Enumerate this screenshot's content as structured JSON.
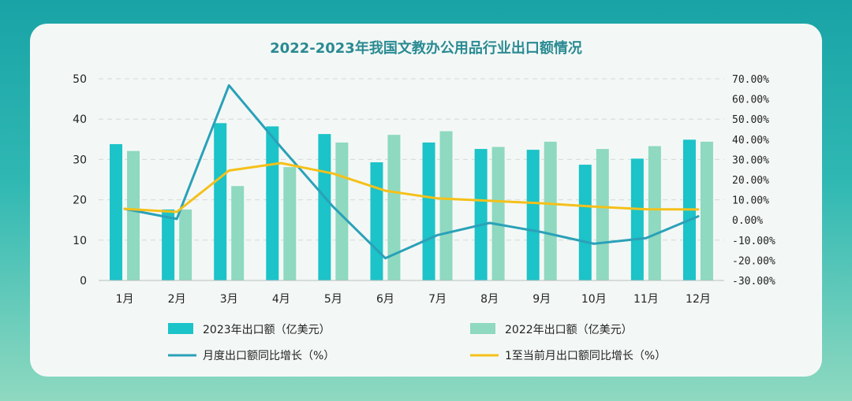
{
  "chart_data": {
    "type": "bar",
    "title": "2022-2023年我国文教办公用品行业出口额情况",
    "categories": [
      "1月",
      "2月",
      "3月",
      "4月",
      "5月",
      "6月",
      "7月",
      "8月",
      "9月",
      "10月",
      "11月",
      "12月"
    ],
    "series": [
      {
        "name": "2023年出口额（亿美元）",
        "type": "bar",
        "axis": "left",
        "color": "#1cc3c8",
        "values": [
          33.8,
          17.6,
          39.0,
          38.2,
          36.3,
          29.3,
          34.2,
          32.6,
          32.4,
          28.7,
          30.2,
          34.9
        ]
      },
      {
        "name": "2022年出口额（亿美元）",
        "type": "bar",
        "axis": "left",
        "color": "#8ed9c0",
        "values": [
          32.1,
          17.6,
          23.4,
          28.1,
          34.2,
          36.1,
          37.0,
          33.1,
          34.4,
          32.6,
          33.3,
          34.4
        ]
      },
      {
        "name": "月度出口额同比增长（%）",
        "type": "line",
        "axis": "right",
        "color": "#2aa1b8",
        "values": [
          5.5,
          0.5,
          66.7,
          36.0,
          6.5,
          -19.0,
          -7.5,
          -1.5,
          -6.0,
          -11.8,
          -9.0,
          1.8
        ]
      },
      {
        "name": "1至当前月出口额同比增长（%）",
        "type": "line",
        "axis": "right",
        "color": "#f5c01a",
        "values": [
          5.5,
          4.0,
          24.5,
          28.2,
          23.0,
          14.5,
          10.7,
          9.5,
          8.3,
          6.6,
          5.3,
          5.2
        ]
      }
    ],
    "yleft": {
      "min": 0,
      "max": 50,
      "ticks": [
        "0",
        "10",
        "20",
        "30",
        "40",
        "50"
      ]
    },
    "yright": {
      "min": -30,
      "max": 70,
      "ticks": [
        "-30.00%",
        "-20.00%",
        "-10.00%",
        "0.00%",
        "10.00%",
        "20.00%",
        "30.00%",
        "40.00%",
        "50.00%",
        "60.00%",
        "70.00%"
      ]
    },
    "grid": true,
    "legend_position": "bottom"
  }
}
